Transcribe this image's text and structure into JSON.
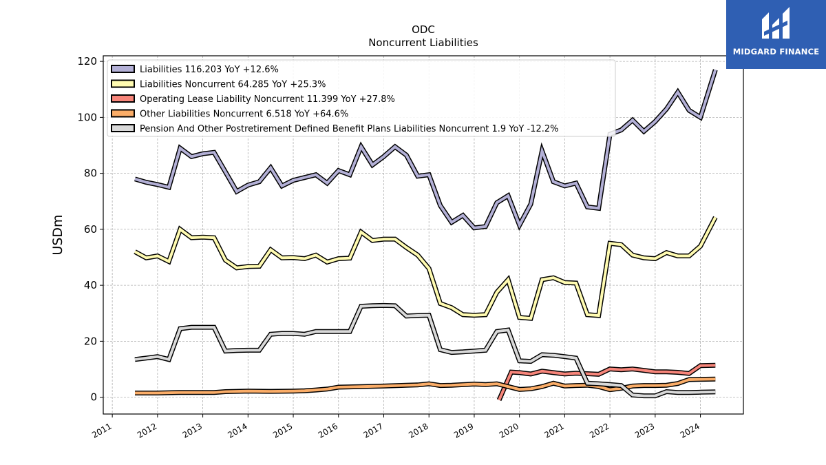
{
  "chart_data": {
    "type": "line",
    "title": "ODC",
    "subtitle": "Noncurrent  Liabilities",
    "xlabel": "",
    "ylabel": "USDm",
    "xlim": [
      2010.8,
      2024.95
    ],
    "ylim": [
      -6,
      122
    ],
    "grid": true,
    "legend_placement": "top-left",
    "x_ticks": [
      "2011",
      "2012",
      "2013",
      "2014",
      "2015",
      "2016",
      "2017",
      "2018",
      "2019",
      "2020",
      "2021",
      "2022",
      "2023",
      "2024"
    ],
    "y_ticks": [
      0,
      20,
      40,
      60,
      80,
      100,
      120
    ],
    "series": [
      {
        "name": "Liabilities  116.203 YoY +12.6%",
        "color": "#b3b0d6",
        "points": [
          [
            2011.5,
            78
          ],
          [
            2011.75,
            76.8
          ],
          [
            2012.0,
            76
          ],
          [
            2012.25,
            75
          ],
          [
            2012.5,
            89
          ],
          [
            2012.75,
            86
          ],
          [
            2013.0,
            87
          ],
          [
            2013.25,
            87.5
          ],
          [
            2013.5,
            80.5
          ],
          [
            2013.75,
            73.5
          ],
          [
            2014.0,
            75.8
          ],
          [
            2014.25,
            77
          ],
          [
            2014.5,
            82
          ],
          [
            2014.75,
            75.5
          ],
          [
            2015.0,
            77.5
          ],
          [
            2015.25,
            78.5
          ],
          [
            2015.5,
            79.5
          ],
          [
            2015.75,
            76.5
          ],
          [
            2016.0,
            81
          ],
          [
            2016.25,
            79.5
          ],
          [
            2016.5,
            89.5
          ],
          [
            2016.75,
            83
          ],
          [
            2017.0,
            86
          ],
          [
            2017.25,
            89.5
          ],
          [
            2017.5,
            86.5
          ],
          [
            2017.75,
            79
          ],
          [
            2018.0,
            79.5
          ],
          [
            2018.25,
            68.5
          ],
          [
            2018.5,
            62.5
          ],
          [
            2018.75,
            65
          ],
          [
            2019.0,
            60.5
          ],
          [
            2019.25,
            61
          ],
          [
            2019.5,
            69.5
          ],
          [
            2019.75,
            72
          ],
          [
            2020.0,
            61.5
          ],
          [
            2020.25,
            69
          ],
          [
            2020.5,
            88
          ],
          [
            2020.75,
            77
          ],
          [
            2021.0,
            75.5
          ],
          [
            2021.25,
            76.5
          ],
          [
            2021.5,
            68
          ],
          [
            2021.75,
            67.5
          ],
          [
            2022.0,
            94
          ],
          [
            2022.25,
            95.5
          ],
          [
            2022.5,
            99
          ],
          [
            2022.75,
            95
          ],
          [
            2023.0,
            98.5
          ],
          [
            2023.25,
            103
          ],
          [
            2023.5,
            109
          ],
          [
            2023.75,
            102.5
          ],
          [
            2024.0,
            100
          ],
          [
            2024.33,
            117
          ]
        ]
      },
      {
        "name": "Liabilities Noncurrent  64.285 YoY +25.3%",
        "color": "#fffbb1",
        "points": [
          [
            2011.5,
            52
          ],
          [
            2011.75,
            49.8
          ],
          [
            2012.0,
            50.5
          ],
          [
            2012.25,
            48.5
          ],
          [
            2012.5,
            60
          ],
          [
            2012.75,
            57
          ],
          [
            2013.0,
            57.2
          ],
          [
            2013.25,
            57
          ],
          [
            2013.5,
            49
          ],
          [
            2013.75,
            46.2
          ],
          [
            2014.0,
            46.7
          ],
          [
            2014.25,
            46.8
          ],
          [
            2014.5,
            52.7
          ],
          [
            2014.75,
            49.8
          ],
          [
            2015.0,
            49.9
          ],
          [
            2015.25,
            49.5
          ],
          [
            2015.5,
            50.8
          ],
          [
            2015.75,
            48.3
          ],
          [
            2016.0,
            49.5
          ],
          [
            2016.25,
            49.7
          ],
          [
            2016.5,
            59
          ],
          [
            2016.75,
            56
          ],
          [
            2017.0,
            56.5
          ],
          [
            2017.25,
            56.5
          ],
          [
            2017.5,
            53.5
          ],
          [
            2017.75,
            50.8
          ],
          [
            2018.0,
            46
          ],
          [
            2018.25,
            33.5
          ],
          [
            2018.5,
            32
          ],
          [
            2018.75,
            29.5
          ],
          [
            2019.0,
            29.3
          ],
          [
            2019.25,
            29.5
          ],
          [
            2019.5,
            37.5
          ],
          [
            2019.75,
            42
          ],
          [
            2020.0,
            28.5
          ],
          [
            2020.25,
            28.2
          ],
          [
            2020.5,
            42
          ],
          [
            2020.75,
            42.7
          ],
          [
            2021.0,
            41
          ],
          [
            2021.25,
            40.8
          ],
          [
            2021.5,
            29.5
          ],
          [
            2021.75,
            29.2
          ],
          [
            2022.0,
            55
          ],
          [
            2022.25,
            54.5
          ],
          [
            2022.5,
            50.8
          ],
          [
            2022.75,
            49.8
          ],
          [
            2023.0,
            49.5
          ],
          [
            2023.25,
            51.7
          ],
          [
            2023.5,
            50.5
          ],
          [
            2023.75,
            50.5
          ],
          [
            2024.0,
            54
          ],
          [
            2024.33,
            64.3
          ]
        ]
      },
      {
        "name": "Operating Lease Liability Noncurrent  11.399 YoY +27.8%",
        "color": "#f7857a",
        "points": [
          [
            2019.55,
            -1
          ],
          [
            2019.82,
            9
          ],
          [
            2020.0,
            8.8
          ],
          [
            2020.25,
            8.3
          ],
          [
            2020.5,
            9.3
          ],
          [
            2020.75,
            8.8
          ],
          [
            2021.0,
            8.3
          ],
          [
            2021.25,
            8.6
          ],
          [
            2021.5,
            8.4
          ],
          [
            2021.75,
            8.2
          ],
          [
            2022.0,
            10.1
          ],
          [
            2022.25,
            9.8
          ],
          [
            2022.5,
            10.1
          ],
          [
            2022.75,
            9.6
          ],
          [
            2023.0,
            9.1
          ],
          [
            2023.25,
            9.1
          ],
          [
            2023.5,
            8.9
          ],
          [
            2023.75,
            8.5
          ],
          [
            2024.0,
            11.3
          ],
          [
            2024.33,
            11.4
          ]
        ]
      },
      {
        "name": "Other Liabilities Noncurrent  6.518 YoY +64.6%",
        "color": "#fbad68",
        "points": [
          [
            2011.5,
            1.5
          ],
          [
            2012.0,
            1.5
          ],
          [
            2012.5,
            1.7
          ],
          [
            2013.0,
            1.7
          ],
          [
            2013.25,
            1.7
          ],
          [
            2013.5,
            2
          ],
          [
            2014.0,
            2.2
          ],
          [
            2014.5,
            2.1
          ],
          [
            2015.0,
            2.2
          ],
          [
            2015.25,
            2.3
          ],
          [
            2015.5,
            2.6
          ],
          [
            2015.75,
            2.9
          ],
          [
            2016.0,
            3.6
          ],
          [
            2016.5,
            3.8
          ],
          [
            2017.0,
            4
          ],
          [
            2017.5,
            4.3
          ],
          [
            2017.75,
            4.4
          ],
          [
            2018.0,
            4.8
          ],
          [
            2018.25,
            4.2
          ],
          [
            2018.5,
            4.3
          ],
          [
            2019.0,
            4.7
          ],
          [
            2019.25,
            4.5
          ],
          [
            2019.5,
            4.8
          ],
          [
            2019.75,
            3.8
          ],
          [
            2020.0,
            2.8
          ],
          [
            2020.25,
            3
          ],
          [
            2020.5,
            3.8
          ],
          [
            2020.75,
            5
          ],
          [
            2021.0,
            4
          ],
          [
            2021.25,
            4.2
          ],
          [
            2021.5,
            4.3
          ],
          [
            2021.75,
            3.8
          ],
          [
            2022.0,
            2.7
          ],
          [
            2022.25,
            3.2
          ],
          [
            2022.5,
            4
          ],
          [
            2022.75,
            4.2
          ],
          [
            2023.0,
            4.2
          ],
          [
            2023.25,
            4.3
          ],
          [
            2023.5,
            4.9
          ],
          [
            2023.75,
            6.3
          ],
          [
            2024.0,
            6.4
          ],
          [
            2024.33,
            6.5
          ]
        ]
      },
      {
        "name": "Pension And Other Postretirement Defined Benefit Plans Liabilities Noncurrent  1.9 YoY -12.2%",
        "color": "#d9d9d9",
        "points": [
          [
            2011.5,
            13.5
          ],
          [
            2011.75,
            14
          ],
          [
            2012.0,
            14.5
          ],
          [
            2012.25,
            13.5
          ],
          [
            2012.5,
            24.5
          ],
          [
            2012.75,
            25
          ],
          [
            2013.0,
            25
          ],
          [
            2013.25,
            25
          ],
          [
            2013.5,
            16.5
          ],
          [
            2013.75,
            16.7
          ],
          [
            2014.0,
            16.8
          ],
          [
            2014.25,
            16.8
          ],
          [
            2014.5,
            22.5
          ],
          [
            2014.75,
            22.8
          ],
          [
            2015.0,
            22.8
          ],
          [
            2015.25,
            22.5
          ],
          [
            2015.5,
            23.5
          ],
          [
            2015.75,
            23.5
          ],
          [
            2016.0,
            23.5
          ],
          [
            2016.25,
            23.5
          ],
          [
            2016.5,
            32.5
          ],
          [
            2016.75,
            32.7
          ],
          [
            2017.0,
            32.8
          ],
          [
            2017.25,
            32.7
          ],
          [
            2017.5,
            29
          ],
          [
            2017.75,
            29.2
          ],
          [
            2018.0,
            29.3
          ],
          [
            2018.25,
            17
          ],
          [
            2018.5,
            16
          ],
          [
            2018.75,
            16.2
          ],
          [
            2019.0,
            16.5
          ],
          [
            2019.25,
            16.8
          ],
          [
            2019.5,
            23.5
          ],
          [
            2019.75,
            24
          ],
          [
            2020.0,
            13
          ],
          [
            2020.25,
            12.8
          ],
          [
            2020.5,
            15.2
          ],
          [
            2020.75,
            15
          ],
          [
            2021.0,
            14.5
          ],
          [
            2021.25,
            14
          ],
          [
            2021.5,
            5
          ],
          [
            2021.75,
            4.8
          ],
          [
            2022.0,
            4.5
          ],
          [
            2022.25,
            4.2
          ],
          [
            2022.5,
            0.8
          ],
          [
            2022.75,
            0.5
          ],
          [
            2023.0,
            0.5
          ],
          [
            2023.25,
            2
          ],
          [
            2023.5,
            1.7
          ],
          [
            2023.75,
            1.7
          ],
          [
            2024.0,
            1.8
          ],
          [
            2024.33,
            1.9
          ]
        ]
      }
    ]
  },
  "logo": {
    "text": "MIDGARD FINANCE"
  }
}
